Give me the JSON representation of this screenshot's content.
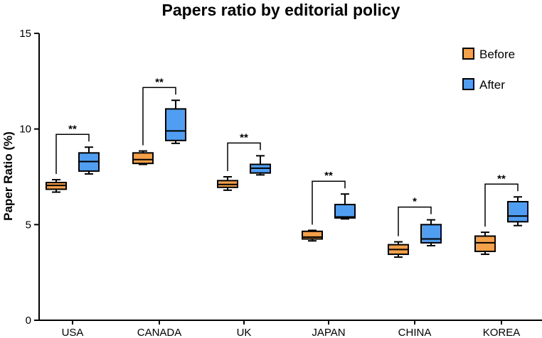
{
  "chart_data": {
    "type": "boxplot",
    "title": "Papers ratio by editorial policy",
    "ylabel": "Paper Ratio (%)",
    "xlabel": "",
    "ylim": [
      0,
      15
    ],
    "yticks": [
      "0",
      "5",
      "10",
      "15"
    ],
    "categories": [
      "USA",
      "CANADA",
      "UK",
      "JAPAN",
      "CHINA",
      "KOREA"
    ],
    "legend_position": "top-right",
    "colors": {
      "Before": "#f5a14a",
      "After": "#4f9ef2",
      "outline": "#000000"
    },
    "series": [
      {
        "name": "Before",
        "boxes": [
          {
            "min": 6.7,
            "q1": 6.85,
            "median": 7.05,
            "q3": 7.2,
            "max": 7.35
          },
          {
            "min": 8.15,
            "q1": 8.2,
            "median": 8.4,
            "q3": 8.75,
            "max": 8.85
          },
          {
            "min": 6.8,
            "q1": 6.95,
            "median": 7.1,
            "q3": 7.3,
            "max": 7.5
          },
          {
            "min": 4.15,
            "q1": 4.25,
            "median": 4.35,
            "q3": 4.65,
            "max": 4.7
          },
          {
            "min": 3.3,
            "q1": 3.45,
            "median": 3.7,
            "q3": 3.95,
            "max": 4.1
          },
          {
            "min": 3.45,
            "q1": 3.6,
            "median": 4.05,
            "q3": 4.4,
            "max": 4.6
          }
        ]
      },
      {
        "name": "After",
        "boxes": [
          {
            "min": 7.65,
            "q1": 7.8,
            "median": 8.3,
            "q3": 8.75,
            "max": 9.05
          },
          {
            "min": 9.25,
            "q1": 9.4,
            "median": 9.9,
            "q3": 11.05,
            "max": 11.5
          },
          {
            "min": 7.6,
            "q1": 7.7,
            "median": 7.95,
            "q3": 8.15,
            "max": 8.6
          },
          {
            "min": 5.3,
            "q1": 5.35,
            "median": 5.4,
            "q3": 6.05,
            "max": 6.6
          },
          {
            "min": 3.9,
            "q1": 4.05,
            "median": 4.25,
            "q3": 5.0,
            "max": 5.25
          },
          {
            "min": 4.95,
            "q1": 5.15,
            "median": 5.45,
            "q3": 6.2,
            "max": 6.45
          }
        ]
      }
    ],
    "significance": [
      "**",
      "**",
      "**",
      "**",
      "*",
      "**"
    ]
  }
}
